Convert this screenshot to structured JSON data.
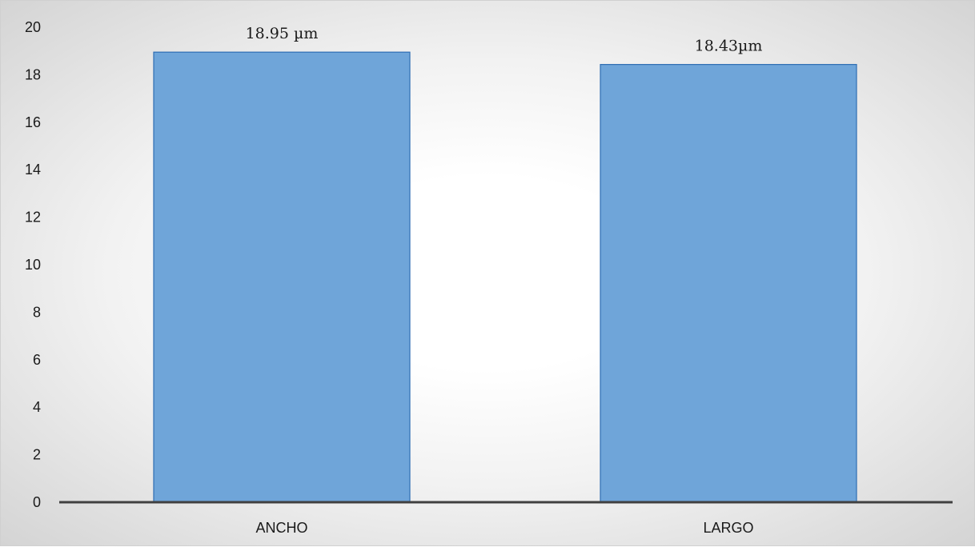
{
  "chart_data": {
    "type": "bar",
    "categories": [
      "ANCHO",
      "LARGO"
    ],
    "values": [
      18.95,
      18.43
    ],
    "data_labels": [
      "18.95 µm",
      "18.43µm"
    ],
    "ylim": [
      0,
      20
    ],
    "yticks": [
      "0",
      "2",
      "4",
      "6",
      "8",
      "10",
      "12",
      "14",
      "16",
      "18",
      "20"
    ],
    "grid": false,
    "legend": "none",
    "colors": {
      "bar_fill": "#6fa5d9",
      "bar_stroke": "#2e6db3",
      "axis_line": "#404040"
    }
  }
}
